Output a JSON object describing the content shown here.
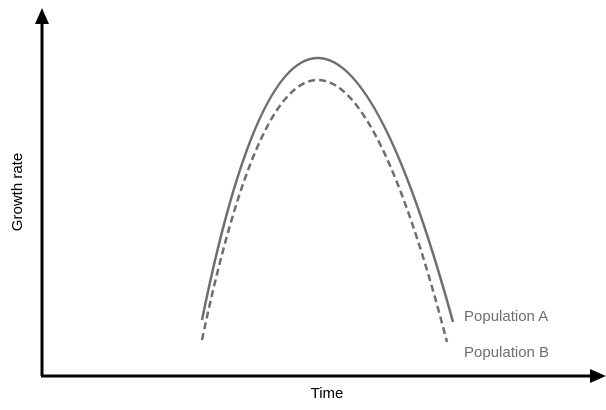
{
  "axes": {
    "y_label": "Growth rate",
    "x_label": "Time"
  },
  "curves": [
    {
      "label": "Population A"
    },
    {
      "label": "Population B"
    }
  ]
}
